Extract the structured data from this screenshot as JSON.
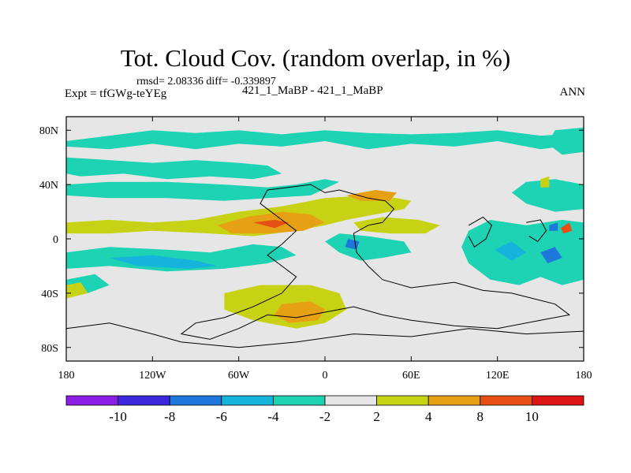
{
  "header": {
    "title": "Tot. Cloud Cov. (random overlap, in %)",
    "stats": "rmsd= 2.08336  diff= -0.339897",
    "expt": "Expt = tfGWg-teYEg",
    "cases": "421_1_MaBP - 421_1_MaBP",
    "season": "ANN"
  },
  "map": {
    "lon_ticks": [
      "180",
      "120W",
      "60W",
      "0",
      "60E",
      "120E",
      "180"
    ],
    "lat_ticks": [
      "80N",
      "40N",
      "0",
      "40S",
      "80S"
    ],
    "lon_range": [
      -180,
      180
    ],
    "lat_range": [
      -90,
      90
    ],
    "background_color": "#e6e6e6"
  },
  "colorbar": {
    "labels": [
      "-10",
      "-8",
      "-6",
      "-4",
      "-2",
      "2",
      "4",
      "8",
      "10"
    ],
    "colors": [
      "#8c1ee6",
      "#3c28dc",
      "#1e78dc",
      "#14b4dc",
      "#1ed2b4",
      "#e6e6e6",
      "#c8d214",
      "#e6a014",
      "#e65014",
      "#dc1414"
    ]
  },
  "regions": [
    {
      "name": "arctic-negative-band",
      "color": "#1ed2b4",
      "points": [
        [
          -180,
          72
        ],
        [
          -150,
          76
        ],
        [
          -120,
          80
        ],
        [
          -90,
          78
        ],
        [
          -60,
          80
        ],
        [
          -30,
          77
        ],
        [
          0,
          80
        ],
        [
          30,
          78
        ],
        [
          60,
          77
        ],
        [
          90,
          78
        ],
        [
          120,
          80
        ],
        [
          150,
          76
        ],
        [
          180,
          78
        ],
        [
          180,
          70
        ],
        [
          150,
          66
        ],
        [
          120,
          72
        ],
        [
          90,
          68
        ],
        [
          60,
          70
        ],
        [
          30,
          66
        ],
        [
          0,
          72
        ],
        [
          -30,
          68
        ],
        [
          -60,
          70
        ],
        [
          -90,
          66
        ],
        [
          -120,
          70
        ],
        [
          -150,
          66
        ],
        [
          -180,
          68
        ]
      ]
    },
    {
      "name": "north-atlantic-negative",
      "color": "#1ed2b4",
      "points": [
        [
          -180,
          60
        ],
        [
          -150,
          58
        ],
        [
          -120,
          56
        ],
        [
          -90,
          58
        ],
        [
          -60,
          56
        ],
        [
          -40,
          54
        ],
        [
          -30,
          48
        ],
        [
          -50,
          44
        ],
        [
          -80,
          46
        ],
        [
          -110,
          44
        ],
        [
          -140,
          48
        ],
        [
          -170,
          46
        ],
        [
          -180,
          48
        ]
      ]
    },
    {
      "name": "midlat-negative-band",
      "color": "#1ed2b4",
      "points": [
        [
          -180,
          40
        ],
        [
          -150,
          42
        ],
        [
          -110,
          42
        ],
        [
          -70,
          40
        ],
        [
          -40,
          38
        ],
        [
          -20,
          40
        ],
        [
          0,
          44
        ],
        [
          10,
          42
        ],
        [
          -10,
          32
        ],
        [
          -40,
          30
        ],
        [
          -70,
          28
        ],
        [
          -110,
          30
        ],
        [
          -150,
          30
        ],
        [
          -180,
          32
        ]
      ]
    },
    {
      "name": "pacific-west-negative",
      "color": "#1ed2b4",
      "points": [
        [
          140,
          42
        ],
        [
          160,
          44
        ],
        [
          180,
          40
        ],
        [
          180,
          22
        ],
        [
          160,
          20
        ],
        [
          140,
          26
        ],
        [
          130,
          34
        ]
      ]
    },
    {
      "name": "north-pacific-east-negative",
      "color": "#1ed2b4",
      "points": [
        [
          160,
          80
        ],
        [
          180,
          82
        ],
        [
          180,
          64
        ],
        [
          165,
          62
        ],
        [
          155,
          70
        ]
      ]
    },
    {
      "name": "tropical-atlantic-positive",
      "color": "#c8d214",
      "points": [
        [
          -180,
          12
        ],
        [
          -150,
          14
        ],
        [
          -120,
          12
        ],
        [
          -90,
          14
        ],
        [
          -60,
          20
        ],
        [
          -30,
          24
        ],
        [
          0,
          30
        ],
        [
          30,
          32
        ],
        [
          50,
          30
        ],
        [
          60,
          28
        ],
        [
          55,
          22
        ],
        [
          35,
          18
        ],
        [
          15,
          14
        ],
        [
          0,
          10
        ],
        [
          -20,
          6
        ],
        [
          -50,
          2
        ],
        [
          -80,
          4
        ],
        [
          -120,
          6
        ],
        [
          -150,
          4
        ],
        [
          -180,
          4
        ]
      ]
    },
    {
      "name": "sahel-positive",
      "color": "#c8d214",
      "points": [
        [
          20,
          12
        ],
        [
          40,
          16
        ],
        [
          65,
          14
        ],
        [
          80,
          10
        ],
        [
          70,
          4
        ],
        [
          45,
          4
        ],
        [
          25,
          6
        ]
      ]
    },
    {
      "name": "tropical-orange-core",
      "color": "#e6a014",
      "points": [
        [
          -75,
          10
        ],
        [
          -55,
          16
        ],
        [
          -30,
          20
        ],
        [
          -10,
          18
        ],
        [
          0,
          12
        ],
        [
          -15,
          6
        ],
        [
          -40,
          4
        ],
        [
          -65,
          4
        ]
      ]
    },
    {
      "name": "atlantic-orange",
      "color": "#e6a014",
      "points": [
        [
          15,
          32
        ],
        [
          35,
          36
        ],
        [
          50,
          34
        ],
        [
          45,
          28
        ],
        [
          25,
          28
        ]
      ]
    },
    {
      "name": "tropical-red-spot",
      "color": "#e65014",
      "points": [
        [
          -50,
          12
        ],
        [
          -35,
          14
        ],
        [
          -25,
          12
        ],
        [
          -35,
          8
        ]
      ]
    },
    {
      "name": "south-tropic-negative",
      "color": "#1ed2b4",
      "points": [
        [
          -180,
          -10
        ],
        [
          -150,
          -6
        ],
        [
          -110,
          -8
        ],
        [
          -80,
          -10
        ],
        [
          -50,
          -4
        ],
        [
          -30,
          -6
        ],
        [
          -20,
          -12
        ],
        [
          -40,
          -18
        ],
        [
          -70,
          -22
        ],
        [
          -110,
          -24
        ],
        [
          -150,
          -20
        ],
        [
          -180,
          -22
        ]
      ]
    },
    {
      "name": "south-tropic-deeper",
      "color": "#14b4dc",
      "points": [
        [
          -150,
          -14
        ],
        [
          -120,
          -12
        ],
        [
          -90,
          -16
        ],
        [
          -75,
          -20
        ],
        [
          -95,
          -22
        ],
        [
          -130,
          -20
        ]
      ]
    },
    {
      "name": "africa-negative",
      "color": "#1ed2b4",
      "points": [
        [
          10,
          4
        ],
        [
          30,
          2
        ],
        [
          55,
          -2
        ],
        [
          60,
          -10
        ],
        [
          40,
          -14
        ],
        [
          25,
          -16
        ],
        [
          10,
          -10
        ],
        [
          0,
          -2
        ]
      ]
    },
    {
      "name": "africa-blue-spot",
      "color": "#1e78dc",
      "points": [
        [
          16,
          0
        ],
        [
          24,
          -2
        ],
        [
          22,
          -8
        ],
        [
          14,
          -6
        ]
      ]
    },
    {
      "name": "indo-pacific-negative",
      "color": "#1ed2b4",
      "points": [
        [
          100,
          6
        ],
        [
          115,
          14
        ],
        [
          140,
          10
        ],
        [
          165,
          14
        ],
        [
          180,
          12
        ],
        [
          180,
          -30
        ],
        [
          165,
          -34
        ],
        [
          150,
          -28
        ],
        [
          135,
          -34
        ],
        [
          115,
          -30
        ],
        [
          100,
          -18
        ],
        [
          95,
          -6
        ]
      ]
    },
    {
      "name": "indo-blue-spot",
      "color": "#14b4dc",
      "points": [
        [
          118,
          -8
        ],
        [
          130,
          -2
        ],
        [
          140,
          -10
        ],
        [
          130,
          -16
        ]
      ]
    },
    {
      "name": "maritime-blue-spot",
      "color": "#1e78dc",
      "points": [
        [
          150,
          -10
        ],
        [
          160,
          -6
        ],
        [
          165,
          -14
        ],
        [
          155,
          -18
        ]
      ]
    },
    {
      "name": "south-ocean-positive",
      "color": "#c8d214",
      "points": [
        [
          -70,
          -40
        ],
        [
          -45,
          -34
        ],
        [
          -10,
          -34
        ],
        [
          10,
          -40
        ],
        [
          15,
          -52
        ],
        [
          0,
          -62
        ],
        [
          -20,
          -66
        ],
        [
          -50,
          -60
        ],
        [
          -70,
          -52
        ]
      ]
    },
    {
      "name": "south-ocean-orange",
      "color": "#e6a014",
      "points": [
        [
          -30,
          -48
        ],
        [
          -10,
          -46
        ],
        [
          0,
          -52
        ],
        [
          -5,
          -60
        ],
        [
          -25,
          -62
        ],
        [
          -35,
          -56
        ]
      ]
    },
    {
      "name": "south-pacific-negative",
      "color": "#1ed2b4",
      "points": [
        [
          -180,
          -30
        ],
        [
          -160,
          -26
        ],
        [
          -150,
          -34
        ],
        [
          -165,
          -40
        ],
        [
          -180,
          -38
        ]
      ]
    },
    {
      "name": "west-pacific-yellow",
      "color": "#c8d214",
      "points": [
        [
          -180,
          -34
        ],
        [
          -170,
          -32
        ],
        [
          -165,
          -40
        ],
        [
          -180,
          -44
        ]
      ]
    },
    {
      "name": "east-pacific-yellow",
      "color": "#c8d214",
      "points": [
        [
          150,
          44
        ],
        [
          156,
          46
        ],
        [
          156,
          38
        ],
        [
          150,
          38
        ]
      ]
    },
    {
      "name": "east-pacific-red",
      "color": "#e65014",
      "points": [
        [
          164,
          8
        ],
        [
          170,
          12
        ],
        [
          172,
          6
        ],
        [
          166,
          4
        ]
      ]
    },
    {
      "name": "east-pacific-blue",
      "color": "#1e78dc",
      "points": [
        [
          156,
          10
        ],
        [
          162,
          12
        ],
        [
          162,
          6
        ],
        [
          156,
          6
        ]
      ]
    }
  ],
  "coastlines": [
    {
      "name": "continent-north",
      "points": [
        [
          -40,
          36
        ],
        [
          -10,
          40
        ],
        [
          0,
          34
        ],
        [
          10,
          36
        ],
        [
          30,
          30
        ],
        [
          42,
          28
        ],
        [
          48,
          22
        ],
        [
          40,
          12
        ],
        [
          30,
          10
        ],
        [
          20,
          4
        ],
        [
          22,
          -10
        ],
        [
          30,
          -20
        ],
        [
          40,
          -30
        ],
        [
          60,
          -36
        ],
        [
          90,
          -32
        ],
        [
          110,
          -38
        ],
        [
          130,
          -40
        ],
        [
          160,
          -48
        ],
        [
          170,
          -56
        ],
        [
          150,
          -60
        ],
        [
          120,
          -66
        ],
        [
          90,
          -64
        ],
        [
          60,
          -60
        ],
        [
          40,
          -56
        ],
        [
          20,
          -50
        ],
        [
          0,
          -54
        ],
        [
          -20,
          -58
        ],
        [
          -40,
          -56
        ],
        [
          -60,
          -66
        ],
        [
          -80,
          -74
        ],
        [
          -100,
          -70
        ],
        [
          -90,
          -62
        ],
        [
          -70,
          -58
        ],
        [
          -50,
          -50
        ],
        [
          -30,
          -40
        ],
        [
          -20,
          -28
        ],
        [
          -30,
          -20
        ],
        [
          -40,
          -12
        ],
        [
          -30,
          -4
        ],
        [
          -20,
          6
        ],
        [
          -30,
          14
        ],
        [
          -45,
          26
        ],
        [
          -40,
          36
        ]
      ]
    },
    {
      "name": "continent-south",
      "points": [
        [
          -180,
          -66
        ],
        [
          -150,
          -62
        ],
        [
          -120,
          -70
        ],
        [
          -100,
          -76
        ],
        [
          -60,
          -80
        ],
        [
          -20,
          -76
        ],
        [
          20,
          -70
        ],
        [
          60,
          -72
        ],
        [
          100,
          -66
        ],
        [
          140,
          -70
        ],
        [
          180,
          -68
        ]
      ]
    },
    {
      "name": "island-east",
      "points": [
        [
          100,
          10
        ],
        [
          110,
          16
        ],
        [
          116,
          10
        ],
        [
          112,
          0
        ],
        [
          104,
          -6
        ],
        [
          100,
          2
        ]
      ]
    },
    {
      "name": "island-east-2",
      "points": [
        [
          140,
          12
        ],
        [
          150,
          14
        ],
        [
          154,
          6
        ],
        [
          148,
          -2
        ],
        [
          142,
          2
        ]
      ]
    }
  ]
}
